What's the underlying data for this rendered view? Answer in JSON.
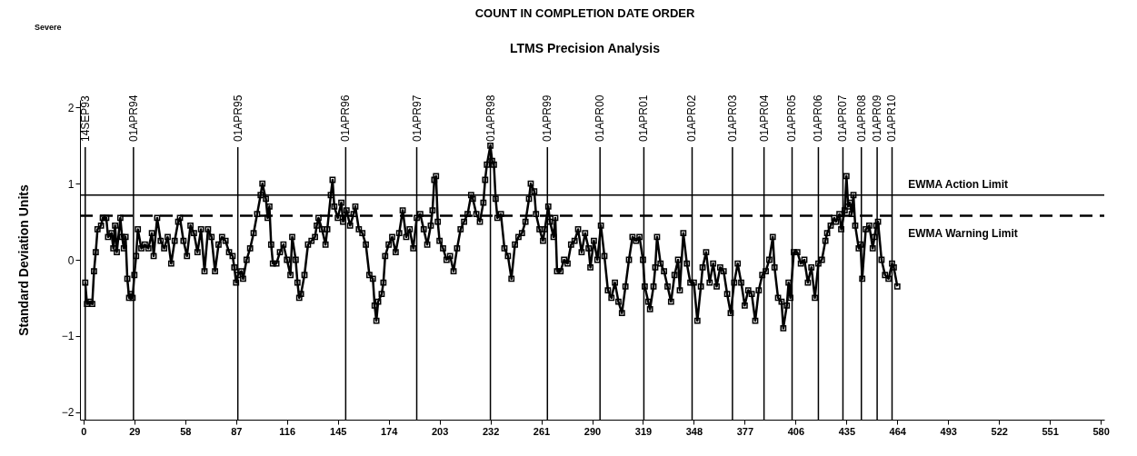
{
  "chart_data": {
    "type": "line",
    "title": "COUNT IN COMPLETION DATE ORDER",
    "subtitle": "LTMS Precision Analysis",
    "ylabel": "Standard Deviation Units",
    "annotations": [
      "Severe"
    ],
    "x": [
      1,
      2,
      4,
      5,
      6,
      7,
      8,
      10,
      11,
      13,
      14,
      16,
      17,
      18,
      19,
      21,
      22,
      23,
      24,
      25,
      26,
      27,
      28,
      29,
      30,
      31,
      33,
      35,
      37,
      39,
      40,
      42,
      44,
      46,
      48,
      50,
      52,
      54,
      55,
      57,
      59,
      61,
      63,
      65,
      67,
      69,
      71,
      73,
      75,
      77,
      79,
      81,
      83,
      85,
      86,
      87,
      88,
      90,
      91,
      93,
      95,
      97,
      99,
      101,
      102,
      104,
      105,
      106,
      107,
      108,
      110,
      112,
      114,
      116,
      118,
      119,
      121,
      122,
      123,
      124,
      126,
      128,
      130,
      132,
      133,
      134,
      136,
      138,
      139,
      141,
      142,
      143,
      145,
      147,
      148,
      150,
      152,
      154,
      155,
      157,
      159,
      161,
      163,
      165,
      166,
      167,
      168,
      170,
      171,
      172,
      174,
      176,
      178,
      180,
      182,
      184,
      186,
      188,
      190,
      192,
      194,
      196,
      198,
      199,
      200,
      201,
      202,
      203,
      205,
      207,
      209,
      211,
      213,
      215,
      217,
      219,
      221,
      222,
      224,
      226,
      228,
      229,
      230,
      232,
      233,
      234,
      235,
      236,
      238,
      240,
      242,
      244,
      246,
      248,
      250,
      252,
      254,
      255,
      257,
      258,
      260,
      262,
      263,
      265,
      266,
      268,
      269,
      270,
      272,
      274,
      276,
      278,
      280,
      282,
      284,
      286,
      288,
      289,
      291,
      293,
      295,
      297,
      299,
      301,
      303,
      305,
      307,
      309,
      311,
      313,
      315,
      317,
      319,
      320,
      322,
      323,
      325,
      326,
      327,
      329,
      331,
      333,
      335,
      337,
      339,
      340,
      342,
      344,
      346,
      348,
      350,
      352,
      353,
      355,
      357,
      359,
      361,
      363,
      365,
      367,
      369,
      371,
      373,
      375,
      377,
      379,
      381,
      383,
      385,
      387,
      389,
      391,
      393,
      394,
      396,
      398,
      399,
      401,
      402,
      403,
      405,
      407,
      409,
      411,
      413,
      415,
      417,
      419,
      421,
      423,
      424,
      426,
      428,
      429,
      431,
      432,
      434,
      435,
      436,
      437,
      438,
      439,
      440,
      442,
      443,
      444,
      446,
      448,
      450,
      451,
      452,
      453,
      455,
      457,
      459,
      461,
      462,
      464
    ],
    "series": [
      {
        "color": "#000000",
        "values": [
          -0.3,
          -0.58,
          -0.55,
          -0.58,
          -0.15,
          0.1,
          0.4,
          0.45,
          0.55,
          0.55,
          0.3,
          0.35,
          0.15,
          0.45,
          0.1,
          0.55,
          0.3,
          0.15,
          0.3,
          -0.25,
          -0.5,
          -0.45,
          -0.5,
          -0.2,
          0.05,
          0.4,
          0.15,
          0.2,
          0.15,
          0.35,
          0.05,
          0.55,
          0.25,
          0.15,
          0.3,
          -0.05,
          0.25,
          0.5,
          0.55,
          0.25,
          0.05,
          0.45,
          0.35,
          0.1,
          0.4,
          -0.15,
          0.4,
          0.3,
          -0.15,
          0.2,
          0.3,
          0.25,
          0.1,
          0.05,
          -0.1,
          -0.3,
          -0.2,
          -0.15,
          -0.25,
          0.0,
          0.15,
          0.35,
          0.6,
          0.85,
          1.0,
          0.8,
          0.55,
          0.7,
          0.2,
          -0.05,
          -0.05,
          0.1,
          0.2,
          0.0,
          -0.2,
          0.3,
          0.0,
          -0.3,
          -0.5,
          -0.45,
          -0.2,
          0.2,
          0.25,
          0.3,
          0.45,
          0.55,
          0.4,
          0.2,
          0.4,
          0.85,
          1.05,
          0.7,
          0.55,
          0.75,
          0.5,
          0.65,
          0.45,
          0.6,
          0.7,
          0.4,
          0.35,
          0.2,
          -0.2,
          -0.25,
          -0.6,
          -0.8,
          -0.55,
          -0.45,
          -0.3,
          0.05,
          0.2,
          0.3,
          0.1,
          0.35,
          0.65,
          0.3,
          0.4,
          0.15,
          0.55,
          0.6,
          0.4,
          0.2,
          0.45,
          0.65,
          1.05,
          1.1,
          0.5,
          0.25,
          0.15,
          0.0,
          0.05,
          -0.15,
          0.15,
          0.4,
          0.5,
          0.6,
          0.85,
          0.8,
          0.6,
          0.5,
          0.75,
          1.05,
          1.25,
          1.5,
          1.3,
          1.25,
          0.8,
          0.55,
          0.6,
          0.15,
          0.05,
          -0.25,
          0.2,
          0.3,
          0.35,
          0.5,
          0.8,
          1.0,
          0.9,
          0.6,
          0.4,
          0.25,
          0.4,
          0.7,
          0.5,
          0.3,
          0.55,
          -0.15,
          -0.15,
          0.0,
          -0.05,
          0.2,
          0.25,
          0.4,
          0.1,
          0.35,
          0.15,
          -0.1,
          0.25,
          0.0,
          0.45,
          0.05,
          -0.4,
          -0.5,
          -0.3,
          -0.55,
          -0.7,
          -0.35,
          0.0,
          0.3,
          0.25,
          0.3,
          0.0,
          -0.35,
          -0.55,
          -0.65,
          -0.35,
          -0.1,
          0.3,
          -0.05,
          -0.15,
          -0.35,
          -0.55,
          -0.2,
          0.0,
          -0.4,
          0.35,
          -0.05,
          -0.3,
          -0.3,
          -0.8,
          -0.35,
          -0.1,
          0.1,
          -0.3,
          -0.05,
          -0.35,
          -0.1,
          -0.15,
          -0.45,
          -0.7,
          -0.3,
          -0.05,
          -0.3,
          -0.6,
          -0.4,
          -0.45,
          -0.8,
          -0.4,
          -0.2,
          -0.15,
          0.0,
          0.3,
          -0.1,
          -0.5,
          -0.55,
          -0.9,
          -0.6,
          -0.3,
          -0.5,
          0.1,
          0.1,
          -0.05,
          0.0,
          -0.3,
          -0.1,
          -0.5,
          -0.05,
          0.0,
          0.25,
          0.35,
          0.45,
          0.55,
          0.5,
          0.6,
          0.4,
          0.65,
          1.1,
          0.7,
          0.75,
          0.6,
          0.85,
          0.45,
          0.15,
          0.2,
          -0.25,
          0.4,
          0.45,
          0.15,
          0.3,
          0.45,
          0.5,
          0.0,
          -0.2,
          -0.25,
          -0.05,
          -0.1,
          -0.35
        ]
      }
    ],
    "xlim": [
      -2,
      582
    ],
    "xticks": [
      0,
      29,
      58,
      87,
      116,
      145,
      174,
      203,
      232,
      261,
      290,
      319,
      348,
      377,
      406,
      435,
      464,
      493,
      522,
      551,
      580
    ],
    "ylim": [
      -2.1,
      2.1
    ],
    "yticks": [
      {
        "value": -2,
        "label": "−2"
      },
      {
        "value": -1,
        "label": "−1"
      },
      0,
      1,
      2
    ],
    "ref_lines": [
      {
        "axis": "y",
        "value": 0.85,
        "label": "EWMA Action Limit",
        "line_style": "solid"
      },
      {
        "axis": "y",
        "value": 0.58,
        "label": "EWMA Warning Limit",
        "line_style": "dashed"
      },
      {
        "axis": "x",
        "value": 1,
        "label": "14SEP93"
      },
      {
        "axis": "x",
        "value": 28.5,
        "label": "01APR94"
      },
      {
        "axis": "x",
        "value": 88,
        "label": "01APR95"
      },
      {
        "axis": "x",
        "value": 149.5,
        "label": "01APR96"
      },
      {
        "axis": "x",
        "value": 190,
        "label": "01APR97"
      },
      {
        "axis": "x",
        "value": 232,
        "label": "01APR98"
      },
      {
        "axis": "x",
        "value": 264.5,
        "label": "01APR99"
      },
      {
        "axis": "x",
        "value": 294.5,
        "label": "01APR00"
      },
      {
        "axis": "x",
        "value": 319.5,
        "label": "01APR01"
      },
      {
        "axis": "x",
        "value": 347,
        "label": "01APR02"
      },
      {
        "axis": "x",
        "value": 370,
        "label": "01APR03"
      },
      {
        "axis": "x",
        "value": 388,
        "label": "01APR04"
      },
      {
        "axis": "x",
        "value": 404,
        "label": "01APR05"
      },
      {
        "axis": "x",
        "value": 419,
        "label": "01APR06"
      },
      {
        "axis": "x",
        "value": 433,
        "label": "01APR07"
      },
      {
        "axis": "x",
        "value": 443.5,
        "label": "01APR08"
      },
      {
        "axis": "x",
        "value": 452.5,
        "label": "01APR09"
      },
      {
        "axis": "x",
        "value": 461,
        "label": "01APR10"
      }
    ],
    "grid": false,
    "marker": "square",
    "line_style": "solid"
  }
}
